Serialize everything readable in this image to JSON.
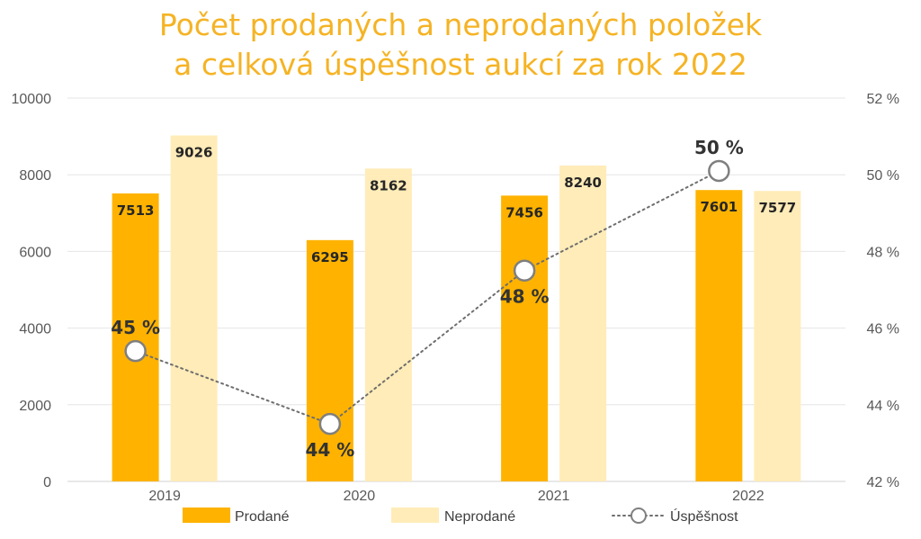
{
  "chart_data": {
    "type": "bar",
    "title_line1": "Počet prodaných a neprodaných položek",
    "title_line2": "a celková úspěšnost aukcí za rok 2022",
    "categories": [
      "2019",
      "2020",
      "2021",
      "2022"
    ],
    "series": [
      {
        "name": "Prodané",
        "values": [
          7513,
          6295,
          7456,
          7601
        ],
        "color": "#FFB300",
        "axis": "left"
      },
      {
        "name": "Neprodané",
        "values": [
          9026,
          8162,
          8240,
          7577
        ],
        "color": "#FFECB8",
        "axis": "left"
      }
    ],
    "line_series": {
      "name": "Úspěšnost",
      "values": [
        45.4,
        43.5,
        47.5,
        50.1
      ],
      "labels": [
        "45 %",
        "44 %",
        "48 %",
        "50 %"
      ],
      "style": "dotted",
      "marker": "hollow-circle",
      "axis": "right"
    },
    "y_left": {
      "min": 0,
      "max": 10000,
      "ticks": [
        "0",
        "2000",
        "4000",
        "6000",
        "8000",
        "10000"
      ]
    },
    "y_right": {
      "min": 42,
      "max": 52,
      "ticks": [
        "42 %",
        "44 %",
        "46 %",
        "48 %",
        "50 %",
        "52 %"
      ]
    },
    "grid": true,
    "legend_position": "bottom",
    "title_color": "#F5B324"
  }
}
